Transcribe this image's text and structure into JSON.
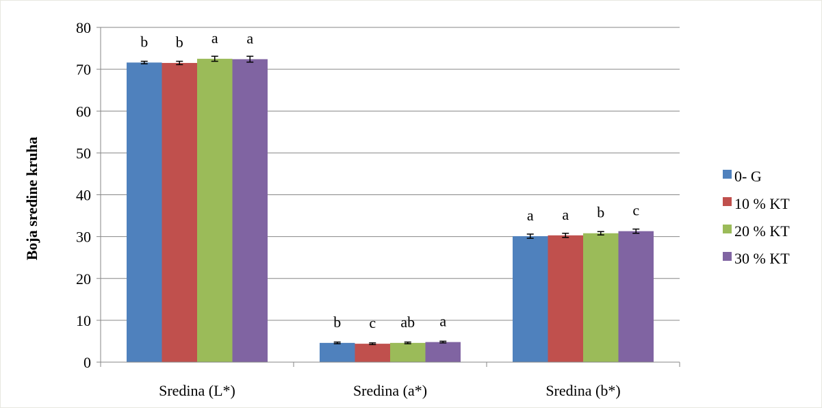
{
  "chart_data": {
    "type": "bar",
    "categories": [
      "Sredina (L*)",
      "Sredina (a*)",
      "Sredina (b*)"
    ],
    "series": [
      {
        "name": "0- G",
        "color": "#4F81BD",
        "values": [
          71.6,
          4.6,
          30.1
        ],
        "errors": [
          0.3,
          0.2,
          0.5
        ],
        "letters": [
          "b",
          "b",
          "a"
        ]
      },
      {
        "name": "10 % KT",
        "color": "#C0504D",
        "values": [
          71.5,
          4.4,
          30.3
        ],
        "errors": [
          0.4,
          0.2,
          0.5
        ],
        "letters": [
          "b",
          "c",
          "a"
        ]
      },
      {
        "name": "20 % KT",
        "color": "#9BBB59",
        "values": [
          72.5,
          4.6,
          30.8
        ],
        "errors": [
          0.6,
          0.2,
          0.4
        ],
        "letters": [
          "a",
          "ab",
          "b"
        ]
      },
      {
        "name": "30 % KT",
        "color": "#8064A2",
        "values": [
          72.4,
          4.8,
          31.3
        ],
        "errors": [
          0.7,
          0.2,
          0.5
        ],
        "letters": [
          "a",
          "a",
          "c"
        ]
      }
    ],
    "title": "",
    "xlabel": "",
    "ylabel": "Boja sredine kruha",
    "ylim": [
      0,
      80
    ],
    "yticks": [
      0,
      10,
      20,
      30,
      40,
      50,
      60,
      70,
      80
    ],
    "grid": true,
    "legend": "right"
  }
}
